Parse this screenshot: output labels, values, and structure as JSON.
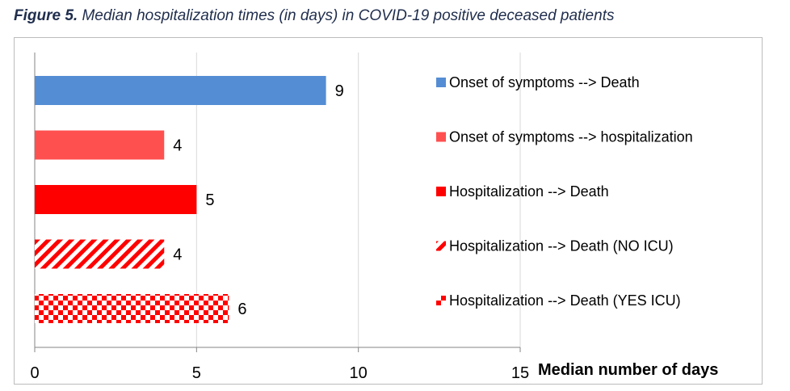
{
  "figure": {
    "label": "Figure 5.",
    "caption": "Median hospitalization times (in days) in COVID-19 positive deceased patients"
  },
  "chart_data": {
    "type": "bar",
    "orientation": "horizontal",
    "title": "Median hospitalization times (in days) in COVID-19 positive deceased patients",
    "xlabel": "Median number of days",
    "ylabel": "",
    "xlim": [
      0,
      15
    ],
    "x_ticks": [
      0,
      5,
      10,
      15
    ],
    "grid": true,
    "legend_position": "right",
    "series": [
      {
        "name": "Onset of symptoms --> Death",
        "value": 9,
        "label": "9",
        "pattern": "solid",
        "color": "#548dd4"
      },
      {
        "name": "Onset of symptoms --> hospitalization",
        "value": 4,
        "label": "4",
        "pattern": "solid",
        "color": "#ff5050"
      },
      {
        "name": "Hospitalization --> Death",
        "value": 5,
        "label": "5",
        "pattern": "solid",
        "color": "#ff0000"
      },
      {
        "name": "Hospitalization --> Death (NO ICU)",
        "value": 4,
        "label": "4",
        "pattern": "diagonal-stripes",
        "color": "#ff0000"
      },
      {
        "name": "Hospitalization --> Death (YES ICU)",
        "value": 6,
        "label": "6",
        "pattern": "checkerboard",
        "color": "#ff0000"
      }
    ]
  }
}
